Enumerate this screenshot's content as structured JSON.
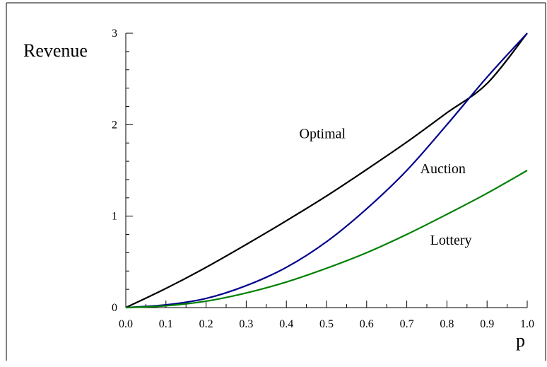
{
  "chart_data": {
    "type": "line",
    "xlabel": "p",
    "ylabel": "Revenue",
    "xlim": [
      0,
      1
    ],
    "ylim": [
      0,
      3
    ],
    "x_ticks": [
      "0.0",
      "0.1",
      "0.2",
      "0.3",
      "0.4",
      "0.5",
      "0.6",
      "0.7",
      "0.8",
      "0.9",
      "1.0"
    ],
    "y_ticks": [
      "0",
      "1",
      "2",
      "3"
    ],
    "grid": false,
    "legend": "none",
    "x": [
      0,
      0.1,
      0.2,
      0.3,
      0.4,
      0.5,
      0.6,
      0.7,
      0.8,
      0.9,
      1.0
    ],
    "series": [
      {
        "name": "Optimal",
        "color": "#000000",
        "values": [
          0,
          0.21,
          0.44,
          0.69,
          0.95,
          1.22,
          1.51,
          1.81,
          2.13,
          2.45,
          3.0
        ]
      },
      {
        "name": "Auction",
        "color": "#00008b",
        "values": [
          0,
          0.03,
          0.1,
          0.24,
          0.44,
          0.72,
          1.08,
          1.5,
          2.0,
          2.52,
          3.0
        ]
      },
      {
        "name": "Lottery",
        "color": "#008000",
        "values": [
          0,
          0.02,
          0.07,
          0.16,
          0.28,
          0.43,
          0.6,
          0.8,
          1.02,
          1.25,
          1.5
        ]
      }
    ]
  }
}
